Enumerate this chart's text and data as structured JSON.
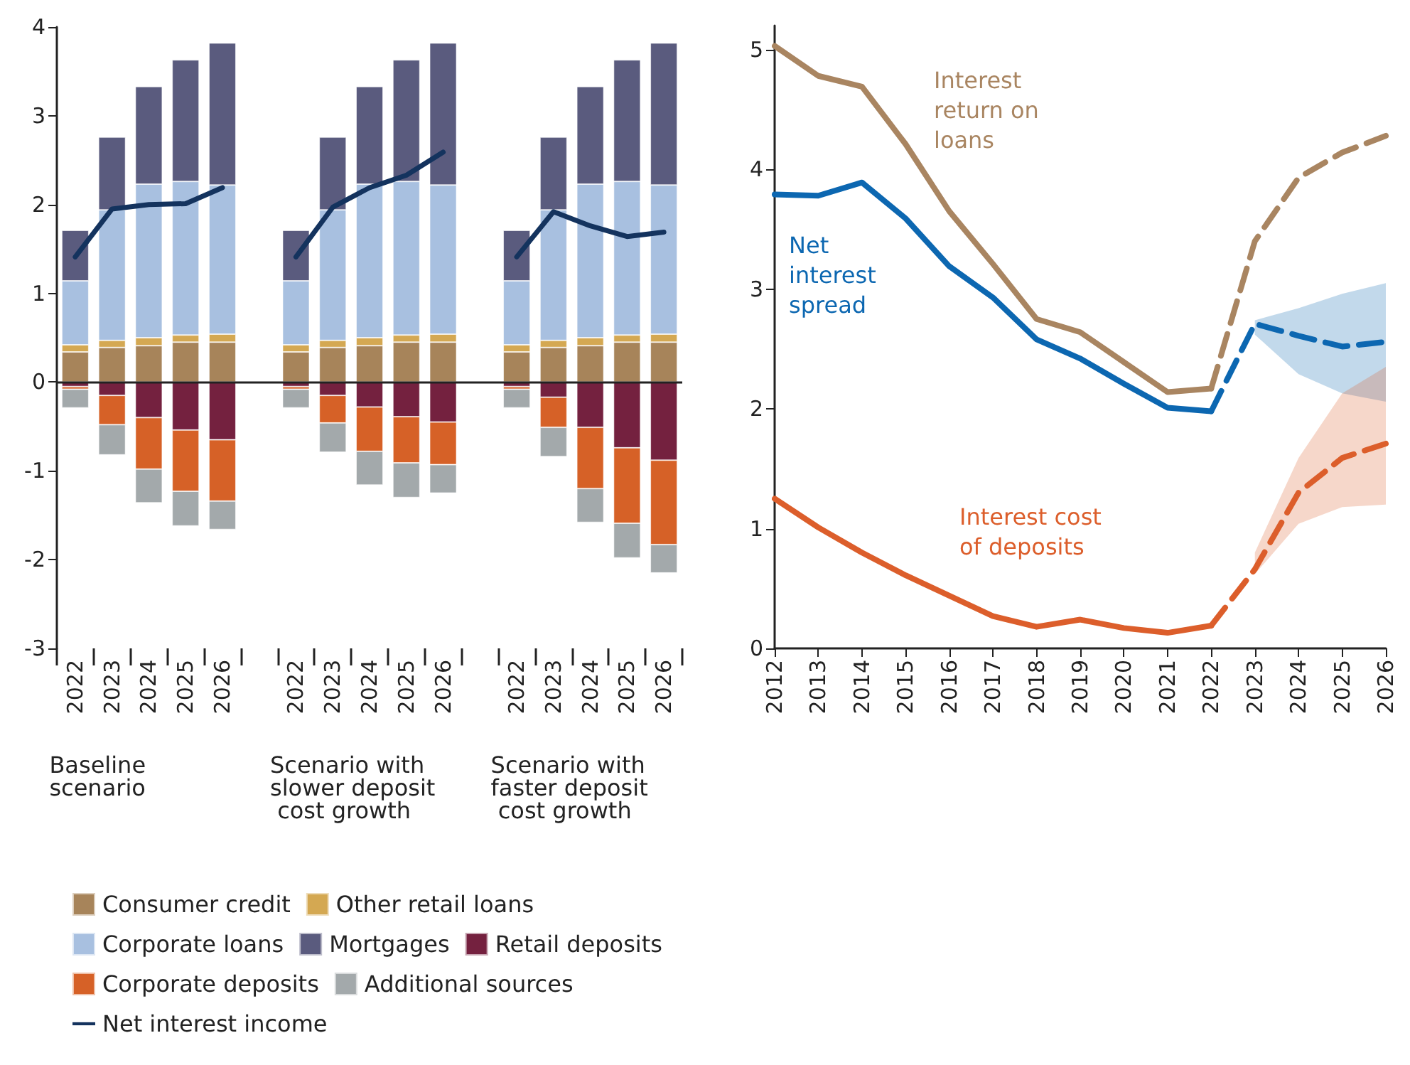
{
  "chart_data": [
    {
      "type": "bar",
      "stacked": true,
      "ylim": [
        -3,
        4
      ],
      "yticks": [
        -3,
        -2,
        -1,
        0,
        1,
        2,
        3,
        4
      ],
      "grid": false,
      "legend": "bottom",
      "ref_lines": [
        {
          "axis": "y",
          "value": 0
        }
      ],
      "categories": [
        "2022",
        "2023",
        "2024",
        "2025",
        "2026",
        null,
        "2022",
        "2023",
        "2024",
        "2025",
        "2026",
        null,
        "2022",
        "2023",
        "2024",
        "2025",
        "2026"
      ],
      "annotations": [
        "Baseline scenario",
        "Scenario with slower deposit cost growth",
        "Scenario with faster deposit cost growth"
      ],
      "series": [
        {
          "name": "Consumer credit",
          "color": "#a7845a",
          "values": [
            0.34,
            0.39,
            0.41,
            0.45,
            0.45,
            null,
            0.34,
            0.39,
            0.41,
            0.45,
            0.45,
            null,
            0.34,
            0.39,
            0.41,
            0.45,
            0.45
          ]
        },
        {
          "name": "Other retail loans",
          "color": "#d4a852",
          "values": [
            0.08,
            0.08,
            0.09,
            0.08,
            0.09,
            null,
            0.08,
            0.08,
            0.09,
            0.08,
            0.09,
            null,
            0.08,
            0.08,
            0.09,
            0.08,
            0.09
          ]
        },
        {
          "name": "Corporate loans",
          "color": "#a8c0e0",
          "values": [
            0.72,
            1.47,
            1.73,
            1.73,
            1.68,
            null,
            0.72,
            1.47,
            1.73,
            1.73,
            1.68,
            null,
            0.72,
            1.47,
            1.73,
            1.73,
            1.68
          ]
        },
        {
          "name": "Mortgages",
          "color": "#5a5b7e",
          "values": [
            0.57,
            0.82,
            1.1,
            1.37,
            1.6,
            null,
            0.57,
            0.82,
            1.1,
            1.37,
            1.6,
            null,
            0.57,
            0.82,
            1.1,
            1.37,
            1.6
          ]
        },
        {
          "name": "Retail deposits",
          "color": "#74213f",
          "values": [
            -0.05,
            -0.15,
            -0.4,
            -0.54,
            -0.65,
            null,
            -0.05,
            -0.15,
            -0.28,
            -0.39,
            -0.45,
            null,
            -0.05,
            -0.17,
            -0.51,
            -0.74,
            -0.88
          ]
        },
        {
          "name": "Corporate deposits",
          "color": "#d66127",
          "values": [
            -0.03,
            -0.33,
            -0.58,
            -0.69,
            -0.69,
            null,
            -0.03,
            -0.31,
            -0.5,
            -0.52,
            -0.48,
            null,
            -0.03,
            -0.34,
            -0.69,
            -0.85,
            -0.95
          ]
        },
        {
          "name": "Additional sources",
          "color": "#a3a9ab",
          "values": [
            -0.21,
            -0.34,
            -0.38,
            -0.39,
            -0.32,
            null,
            -0.21,
            -0.33,
            -0.38,
            -0.39,
            -0.32,
            null,
            -0.21,
            -0.33,
            -0.38,
            -0.39,
            -0.32
          ]
        },
        {
          "name": "Net interest income",
          "type": "line",
          "marker": "none",
          "color": "#14335e",
          "values": [
            1.41,
            1.95,
            2.0,
            2.01,
            2.19,
            null,
            1.41,
            1.97,
            2.19,
            2.33,
            2.59,
            null,
            1.41,
            1.92,
            1.76,
            1.64,
            1.69
          ]
        }
      ]
    },
    {
      "type": "line",
      "xlim": [
        2012,
        2026
      ],
      "xticks": [
        2012,
        2013,
        2014,
        2015,
        2016,
        2017,
        2018,
        2019,
        2020,
        2021,
        2022,
        2023,
        2024,
        2025,
        2026
      ],
      "ylim": [
        0,
        5.2
      ],
      "yticks": [
        0,
        1,
        2,
        3,
        4,
        5
      ],
      "grid": false,
      "legend": false,
      "marker": "none",
      "x": [
        2012,
        2013,
        2014,
        2015,
        2016,
        2017,
        2018,
        2019,
        2020,
        2021,
        2022
      ],
      "series": [
        {
          "name": "Interest return on loans",
          "color": "#a98561",
          "values": [
            5.03,
            4.78,
            4.69,
            4.21,
            3.65,
            3.21,
            2.75,
            2.64,
            2.39,
            2.14,
            2.17
          ]
        },
        {
          "name": "Net interest spread",
          "color": "#0c67b1",
          "values": [
            3.79,
            3.78,
            3.89,
            3.59,
            3.19,
            2.93,
            2.58,
            2.42,
            2.21,
            2.01,
            1.98
          ]
        },
        {
          "name": "Interest cost of deposits",
          "color": "#dc5e2b",
          "values": [
            1.25,
            1.01,
            0.8,
            0.61,
            0.44,
            0.27,
            0.18,
            0.24,
            0.17,
            0.13,
            0.19
          ]
        },
        {
          "color": "#a98561",
          "line_style": "dashed",
          "x": [
            2022,
            2023,
            2024,
            2025,
            2026
          ],
          "values": [
            2.17,
            3.4,
            3.93,
            4.14,
            4.28
          ]
        },
        {
          "color": "#0c67b1",
          "line_style": "dashed",
          "x": [
            2022,
            2023,
            2024,
            2025,
            2026
          ],
          "values": [
            1.98,
            2.71,
            2.61,
            2.52,
            2.56
          ],
          "lower": [
            null,
            2.62,
            2.29,
            2.13,
            2.06
          ],
          "upper": [
            null,
            2.74,
            2.84,
            2.96,
            3.05
          ]
        },
        {
          "color": "#dc5e2b",
          "line_style": "dashed",
          "x": [
            2022,
            2023,
            2024,
            2025,
            2026
          ],
          "values": [
            0.19,
            0.66,
            1.3,
            1.59,
            1.71
          ],
          "lower": [
            null,
            0.62,
            1.04,
            1.18,
            1.2
          ],
          "upper": [
            null,
            0.8,
            1.59,
            2.13,
            2.35
          ]
        }
      ]
    }
  ]
}
